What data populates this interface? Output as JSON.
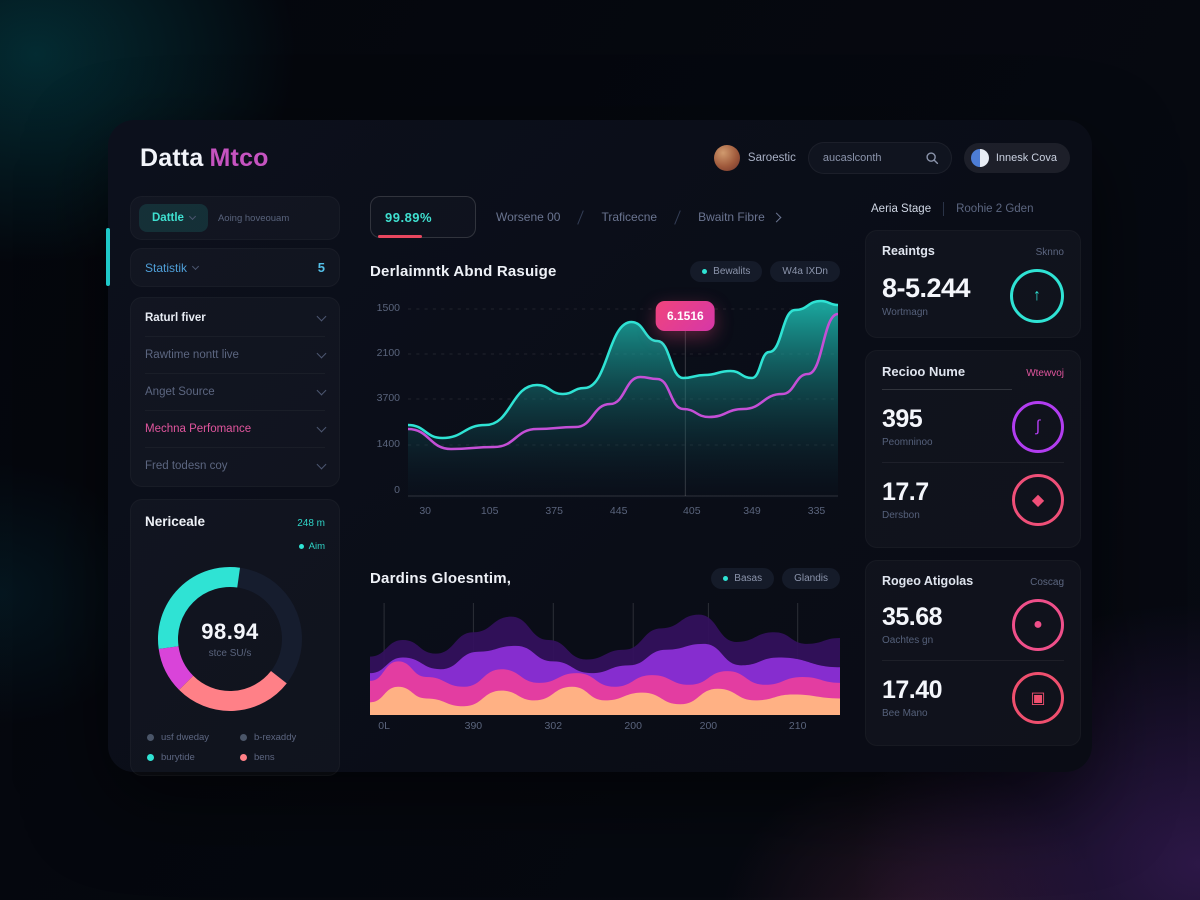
{
  "theme": {
    "teal": "#2fe3d4",
    "pink": "#e0559d",
    "purple": "#b23df0",
    "salmon": "#ff8087",
    "red_underline": "#e8475f",
    "tooltip_pink": "#f0447c"
  },
  "header": {
    "logo_primary": "Datta",
    "logo_secondary": "Mtco",
    "user_name": "Saroestic",
    "search_value": "aucaslconth",
    "workspace_label": "Innesk Cova"
  },
  "sidebar": {
    "quick_button": "Dattle",
    "quick_caption": "Aoing hoveouam",
    "stat_label": "Statistik",
    "stat_value": "5",
    "menu": [
      {
        "label": "Raturl fiver"
      },
      {
        "label": "Rawtime nontt live"
      },
      {
        "label": "Anget Source"
      },
      {
        "label": "Mechna Perfomance"
      },
      {
        "label": "Fred todesn coy"
      }
    ],
    "donut": {
      "title": "Nericeale",
      "meta": "248 m",
      "mini_legend": "Aim",
      "center_value": "98.94",
      "center_caption": "stce SU/s",
      "legend": [
        {
          "label": "usf dweday",
          "color": "#4a5568"
        },
        {
          "label": "b-rexaddy",
          "color": "#4a5568"
        },
        {
          "label": "burytide",
          "color": "#2fe3d4"
        },
        {
          "label": "bens",
          "color": "#ff8087"
        }
      ],
      "segments": [
        {
          "color": "#2fe3d4",
          "start": 262,
          "sweep": 106
        },
        {
          "color": "#d944d9",
          "start": 225,
          "sweep": 37
        },
        {
          "color": "#ff8087",
          "start": 128,
          "sweep": 97
        }
      ]
    }
  },
  "main": {
    "active_tab_value": "99.89%",
    "tabs": [
      {
        "label": "Worsene 00"
      },
      {
        "label": "Traficecne"
      },
      {
        "label": "Bwaitn Fibre"
      }
    ],
    "chart1": {
      "title": "Derlaimntk Abnd Rasuige",
      "legend1": "Bewalits",
      "legend2": "W4a IXDn",
      "tooltip": "6.1516",
      "tooltip_x": 0.645,
      "y_ticks": [
        "1500",
        "2100",
        "3700",
        "1400",
        "0"
      ],
      "y_tick_pos": [
        10,
        55,
        100,
        146,
        192
      ],
      "grid_y": [
        10,
        55,
        100,
        146
      ],
      "x_ticks": [
        "30",
        "105",
        "375",
        "445",
        "405",
        "349",
        "335"
      ],
      "x_tick_pos": [
        4,
        19,
        34,
        49,
        66,
        80,
        95
      ],
      "series": {
        "teal": [
          [
            0,
            126
          ],
          [
            0.08,
            139
          ],
          [
            0.18,
            126
          ],
          [
            0.3,
            86
          ],
          [
            0.36,
            95
          ],
          [
            0.41,
            89
          ],
          [
            0.52,
            23
          ],
          [
            0.58,
            42
          ],
          [
            0.64,
            79
          ],
          [
            0.69,
            76
          ],
          [
            0.75,
            72
          ],
          [
            0.8,
            79
          ],
          [
            0.84,
            53
          ],
          [
            0.9,
            11
          ],
          [
            0.96,
            2
          ],
          [
            1,
            6
          ]
        ],
        "magenta": [
          [
            0,
            130
          ],
          [
            0.1,
            150
          ],
          [
            0.2,
            148
          ],
          [
            0.3,
            130
          ],
          [
            0.39,
            128
          ],
          [
            0.47,
            105
          ],
          [
            0.54,
            78
          ],
          [
            0.58,
            80
          ],
          [
            0.64,
            110
          ],
          [
            0.7,
            118
          ],
          [
            0.78,
            110
          ],
          [
            0.87,
            95
          ],
          [
            0.93,
            75
          ],
          [
            1,
            15
          ]
        ]
      }
    },
    "chart2": {
      "title": "Dardins Gloesntim,",
      "legend1": "Basas",
      "legend2": "Glandis",
      "x_ticks": [
        "0L",
        "390",
        "302",
        "200",
        "200",
        "210"
      ],
      "x_tick_pos": [
        3,
        22,
        39,
        56,
        72,
        91
      ],
      "grid_x": [
        0.03,
        0.22,
        0.39,
        0.56,
        0.72,
        0.91
      ],
      "layers": [
        {
          "color": "#34105e",
          "opacity": 0.92,
          "points": [
            [
              0,
              55
            ],
            [
              0.07,
              38
            ],
            [
              0.14,
              52
            ],
            [
              0.22,
              30
            ],
            [
              0.3,
              14
            ],
            [
              0.38,
              38
            ],
            [
              0.46,
              58
            ],
            [
              0.54,
              48
            ],
            [
              0.62,
              26
            ],
            [
              0.7,
              12
            ],
            [
              0.78,
              40
            ],
            [
              0.86,
              30
            ],
            [
              0.93,
              42
            ],
            [
              1,
              36
            ]
          ]
        },
        {
          "color": "#8b2fd6",
          "opacity": 0.95,
          "points": [
            [
              0,
              72
            ],
            [
              0.07,
              56
            ],
            [
              0.15,
              68
            ],
            [
              0.23,
              50
            ],
            [
              0.31,
              44
            ],
            [
              0.39,
              60
            ],
            [
              0.47,
              72
            ],
            [
              0.55,
              64
            ],
            [
              0.63,
              48
            ],
            [
              0.71,
              42
            ],
            [
              0.79,
              64
            ],
            [
              0.87,
              56
            ],
            [
              1,
              66
            ]
          ]
        },
        {
          "color": "#e83e9e",
          "opacity": 0.95,
          "points": [
            [
              0,
              80
            ],
            [
              0.06,
              60
            ],
            [
              0.12,
              76
            ],
            [
              0.2,
              86
            ],
            [
              0.28,
              68
            ],
            [
              0.36,
              82
            ],
            [
              0.44,
              72
            ],
            [
              0.52,
              86
            ],
            [
              0.6,
              74
            ],
            [
              0.68,
              84
            ],
            [
              0.76,
              70
            ],
            [
              0.84,
              84
            ],
            [
              0.92,
              76
            ],
            [
              1,
              82
            ]
          ]
        },
        {
          "color": "#ffb184",
          "opacity": 1,
          "points": [
            [
              0,
              102
            ],
            [
              0.06,
              86
            ],
            [
              0.12,
              98
            ],
            [
              0.2,
              106
            ],
            [
              0.28,
              90
            ],
            [
              0.35,
              100
            ],
            [
              0.43,
              86
            ],
            [
              0.5,
              100
            ],
            [
              0.58,
              92
            ],
            [
              0.66,
              104
            ],
            [
              0.74,
              88
            ],
            [
              0.82,
              100
            ],
            [
              0.9,
              94
            ],
            [
              1,
              98
            ]
          ]
        }
      ]
    }
  },
  "right": {
    "tab1": "Aeria Stage",
    "tab2": "Roohie 2 Gden",
    "card1": {
      "title": "Reaintgs",
      "meta": "Sknno",
      "value": "8-5.244",
      "caption": "Wortmagn",
      "icon": "↑"
    },
    "card2": {
      "title": "Recioo Nume",
      "meta": "Wtewvoj",
      "stat1": {
        "value": "395",
        "caption": "Peomninoo",
        "icon": "∫"
      },
      "stat2": {
        "value": "17.7",
        "caption": "Dersbon",
        "icon": "◆"
      }
    },
    "card3": {
      "title": "Rogeo Atigolas",
      "meta": "Coscag",
      "stat1": {
        "value": "35.68",
        "caption": "Oachtes gn",
        "icon": "●"
      },
      "stat2": {
        "value": "17.40",
        "caption": "Bee Mano",
        "icon": "▣"
      }
    }
  }
}
